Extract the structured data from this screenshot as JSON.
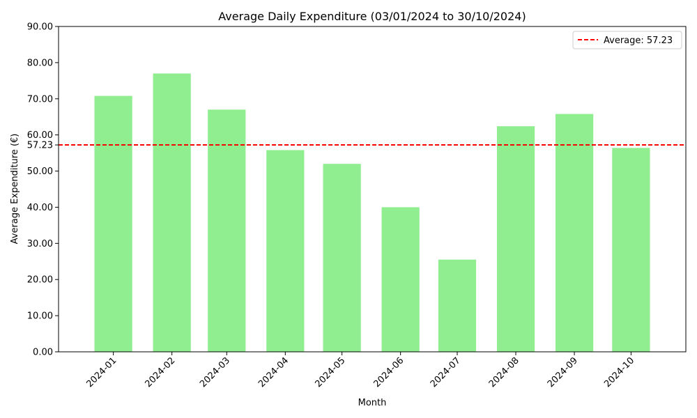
{
  "chart_data": {
    "type": "bar",
    "title": "Average Daily Expenditure (03/01/2024 to 30/10/2024)",
    "xlabel": "Month",
    "ylabel": "Average Expenditure (€)",
    "x": [
      "2024-01-16",
      "2024-02-16",
      "2024-03-16",
      "2024-04-16",
      "2024-05-16",
      "2024-06-16",
      "2024-07-16",
      "2024-08-16",
      "2024-09-16",
      "2024-10-16"
    ],
    "categories": [
      "2024-01",
      "2024-02",
      "2024-03",
      "2024-04",
      "2024-05",
      "2024-06",
      "2024-07",
      "2024-08",
      "2024-09",
      "2024-10"
    ],
    "values": [
      70.8,
      77.0,
      67.0,
      55.8,
      52.0,
      40.0,
      25.5,
      62.4,
      65.8,
      56.4
    ],
    "ylim": [
      0,
      90
    ],
    "yticks": [
      "0.00",
      "10.00",
      "20.00",
      "30.00",
      "40.00",
      "50.00",
      "60.00",
      "70.00",
      "80.00",
      "90.00"
    ],
    "grid": false,
    "bar_color": "#90ee90",
    "average": {
      "value": 57.23,
      "tick_label": "57.23",
      "label": "Average: 57.23",
      "color": "#ff0000",
      "style": "dashed"
    },
    "legend": {
      "placement": "top-right"
    }
  }
}
